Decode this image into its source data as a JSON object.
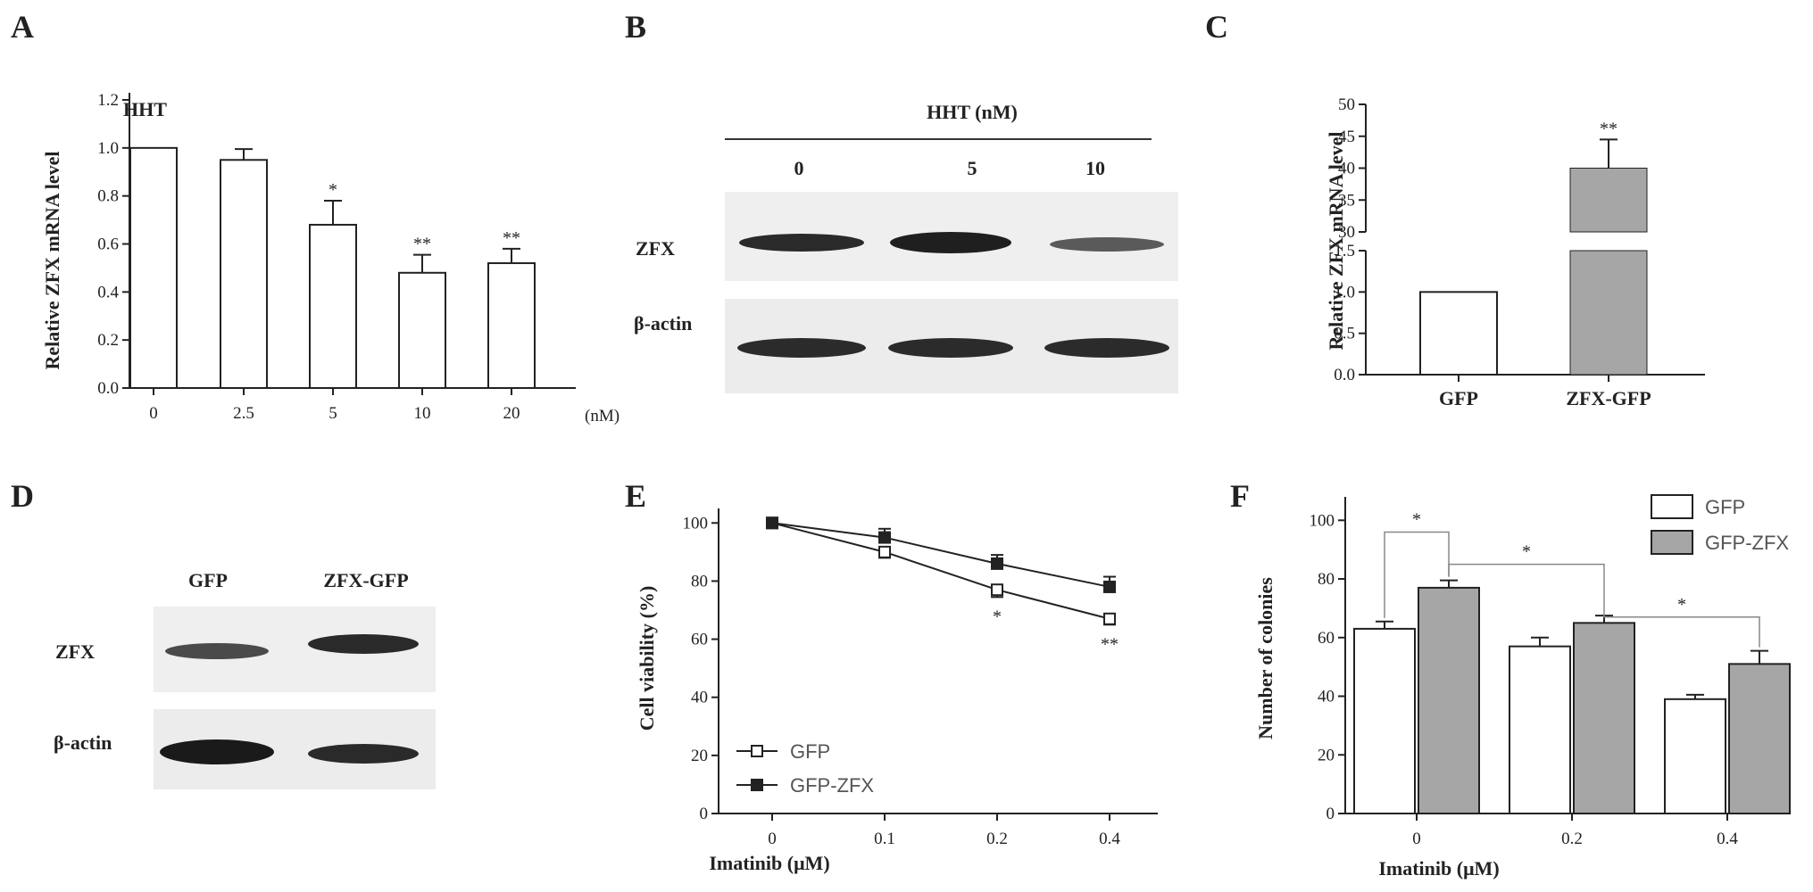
{
  "panels": {
    "A": {
      "letter": "A",
      "annotation": "HHT",
      "unit": "(nM)",
      "ylabel": "Relative ZFX mRNA level"
    },
    "B": {
      "letter": "B",
      "header": "HHT (nM)",
      "lanes": [
        "0",
        "5",
        "10"
      ],
      "rows": [
        "ZFX",
        "β-actin"
      ]
    },
    "C": {
      "letter": "C",
      "ylabel": "Relative ZFX mRNA level"
    },
    "D": {
      "letter": "D",
      "lanes": [
        "GFP",
        "ZFX-GFP"
      ],
      "rows": [
        "ZFX",
        "β-actin"
      ]
    },
    "E": {
      "letter": "E",
      "xlabel": "Imatinib (μM)",
      "ylabel": "Cell viability (%)"
    },
    "F": {
      "letter": "F",
      "xlabel": "Imatinib (μM)",
      "ylabel": "Number of colonies"
    }
  },
  "chart_data": [
    {
      "id": "A",
      "type": "bar",
      "categories": [
        "0",
        "2.5",
        "5",
        "10",
        "20"
      ],
      "values": [
        1.0,
        0.95,
        0.68,
        0.48,
        0.52
      ],
      "errors": [
        0,
        0.045,
        0.1,
        0.075,
        0.06
      ],
      "significance": [
        "",
        "",
        "*",
        "**",
        "**"
      ],
      "ylim": [
        0,
        1.2
      ],
      "yticks": [
        "0.0",
        "0.2",
        "0.4",
        "0.6",
        "0.8",
        "1.0",
        "1.2"
      ],
      "bar_color": "#ffffff"
    },
    {
      "id": "C",
      "type": "bar",
      "categories": [
        "GFP",
        "ZFX-GFP"
      ],
      "values": [
        1.0,
        40.0
      ],
      "errors": [
        0,
        4.5
      ],
      "significance": [
        "",
        "**"
      ],
      "axis_break": {
        "lower": [
          0,
          1.5
        ],
        "upper": [
          30,
          50
        ]
      },
      "yticks_lower": [
        "0.0",
        "0.5",
        "1.0",
        "1.5"
      ],
      "yticks_upper": [
        "30",
        "35",
        "40",
        "45",
        "50"
      ],
      "bar_colors": [
        "#ffffff",
        "#a6a6a6"
      ]
    },
    {
      "id": "E",
      "type": "line",
      "x": [
        "0",
        "0.1",
        "0.2",
        "0.4"
      ],
      "series": [
        {
          "name": "GFP",
          "values": [
            100,
            90,
            77,
            67
          ],
          "errors": [
            0,
            2,
            2.5,
            2
          ],
          "marker": "open-square"
        },
        {
          "name": "GFP-ZFX",
          "values": [
            100,
            95,
            86,
            78
          ],
          "errors": [
            0,
            3,
            3,
            3.5
          ],
          "marker": "filled-square"
        }
      ],
      "significance": [
        "",
        "",
        "*",
        "**"
      ],
      "ylim": [
        0,
        105
      ],
      "yticks": [
        "0",
        "20",
        "40",
        "60",
        "80",
        "100"
      ],
      "legend_position": "bottom-left"
    },
    {
      "id": "F",
      "type": "bar",
      "categories": [
        "0",
        "0.2",
        "0.4"
      ],
      "series": [
        {
          "name": "GFP",
          "values": [
            63,
            57,
            39
          ],
          "errors": [
            2.5,
            3,
            1.5
          ],
          "color": "#ffffff"
        },
        {
          "name": "GFP-ZFX",
          "values": [
            77,
            65,
            51
          ],
          "errors": [
            2.5,
            2.5,
            4.5
          ],
          "color": "#a6a6a6"
        }
      ],
      "comparisons": [
        {
          "from": [
            0,
            0
          ],
          "to": [
            0,
            1
          ],
          "label": "*"
        },
        {
          "from": [
            0,
            1
          ],
          "to": [
            1,
            1
          ],
          "label": "*"
        },
        {
          "from": [
            1,
            1
          ],
          "to": [
            2,
            1
          ],
          "label": "*"
        }
      ],
      "ylim": [
        0,
        108
      ],
      "yticks": [
        "0",
        "20",
        "40",
        "60",
        "80",
        "100"
      ],
      "legend_position": "top-right"
    }
  ]
}
